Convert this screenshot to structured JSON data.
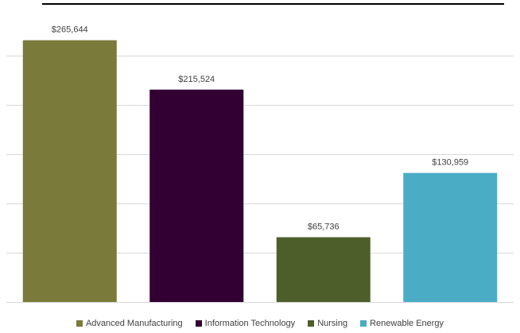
{
  "chart_data": {
    "type": "bar",
    "categories": [
      "Advanced Manufacturing",
      "Information Technology",
      "Nursing",
      "Renewable Energy"
    ],
    "values": [
      265644,
      215524,
      65736,
      130959
    ],
    "data_labels": [
      "$265,644",
      "$215,524",
      "$65,736",
      "$130,959"
    ],
    "colors": [
      "#7a7a3a",
      "#330033",
      "#4e5e2a",
      "#4bacc6"
    ],
    "title": "",
    "xlabel": "",
    "ylabel": "",
    "ylim": [
      0,
      300000
    ],
    "ytick_step": 50000,
    "grid": true,
    "legend": "bottom"
  }
}
